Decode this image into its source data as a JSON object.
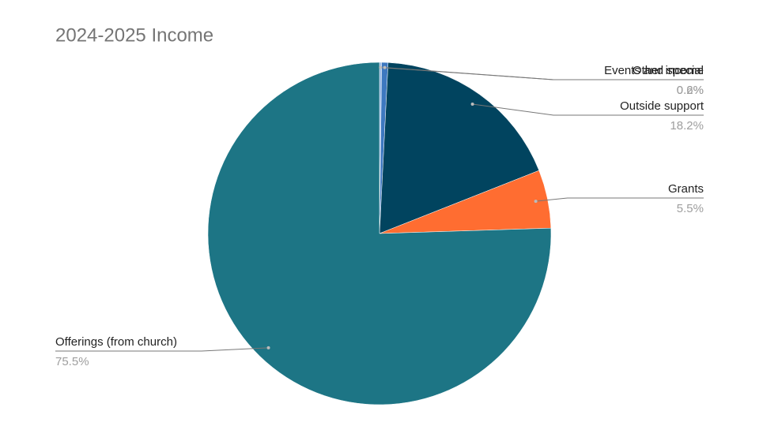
{
  "chart_data": {
    "type": "pie",
    "title": "2024-2025 Income",
    "categories": [
      "Other income",
      "Events and special",
      "Outside support",
      "Grants",
      "Offerings (from church)"
    ],
    "values": [
      0.2,
      0.6,
      18.2,
      5.5,
      75.5
    ],
    "value_labels": [
      "0.2%",
      "0.6%",
      "18.2%",
      "5.5%",
      "75.5%"
    ],
    "colors": [
      "#8fb4e3",
      "#3d78c0",
      "#01445f",
      "#ff6d31",
      "#1d7585"
    ]
  }
}
